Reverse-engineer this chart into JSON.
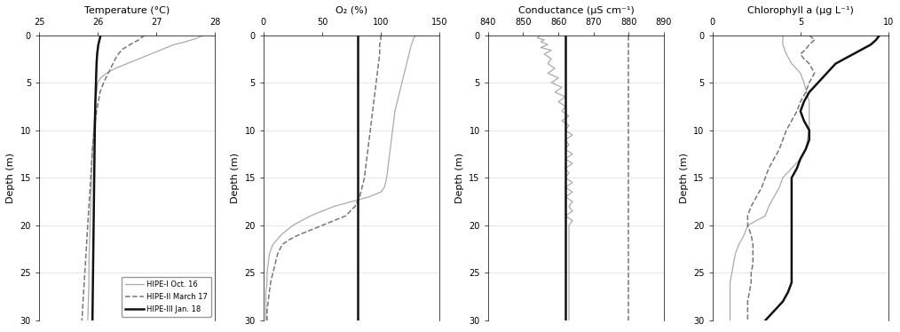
{
  "panels": [
    {
      "title": "Temperature (°C)",
      "xlim": [
        25,
        28
      ],
      "xticks": [
        25,
        26,
        27,
        28
      ],
      "ylim": [
        30,
        0
      ],
      "yticks": [
        0,
        5,
        10,
        15,
        20,
        25,
        30
      ],
      "ylabel": "Depth (m)"
    },
    {
      "title": "O₂ (%)",
      "xlim": [
        0,
        150
      ],
      "xticks": [
        0,
        50,
        100,
        150
      ],
      "ylim": [
        30,
        0
      ],
      "yticks": [
        0,
        5,
        10,
        15,
        20,
        25,
        30
      ],
      "ylabel": "Depth (m)"
    },
    {
      "title": "Conductance (µS cm⁻¹)",
      "xlim": [
        840,
        890
      ],
      "xticks": [
        840,
        850,
        860,
        870,
        880,
        890
      ],
      "ylim": [
        30,
        0
      ],
      "yticks": [
        0,
        5,
        10,
        15,
        20,
        25,
        30
      ],
      "ylabel": "Depth (m)"
    },
    {
      "title": "Chlorophyll a (µg L⁻¹)",
      "xlim": [
        0,
        10
      ],
      "xticks": [
        0,
        5,
        10
      ],
      "ylim": [
        30,
        0
      ],
      "yticks": [
        0,
        5,
        10,
        15,
        20,
        25,
        30
      ],
      "ylabel": "Depth (m)"
    }
  ],
  "series": {
    "HIPE-I Oct. 16": {
      "color": "#aaaaaa",
      "linestyle": "-",
      "linewidth": 0.9,
      "zorder": 1
    },
    "HIPE-II March 17": {
      "color": "#777777",
      "linestyle": "--",
      "linewidth": 1.1,
      "zorder": 2
    },
    "HIPE-III Jan. 18": {
      "color": "#111111",
      "linestyle": "-",
      "linewidth": 1.8,
      "zorder": 3
    }
  },
  "temp": {
    "HIPE-I": {
      "depth": [
        0,
        0.3,
        0.7,
        1.0,
        1.5,
        2.0,
        2.5,
        3.0,
        3.5,
        4.0,
        4.5,
        5.0,
        6,
        7,
        8,
        9,
        10,
        11,
        12,
        14,
        16,
        17,
        18,
        20,
        22,
        24,
        26,
        28,
        30
      ],
      "values": [
        27.8,
        27.7,
        27.5,
        27.3,
        27.1,
        26.9,
        26.7,
        26.5,
        26.3,
        26.15,
        26.05,
        26.0,
        25.98,
        25.96,
        25.95,
        25.94,
        25.93,
        25.92,
        25.91,
        25.9,
        25.89,
        25.88,
        25.88,
        25.87,
        25.86,
        25.85,
        25.85,
        25.84,
        25.83
      ]
    },
    "HIPE-II": {
      "depth": [
        0,
        0.5,
        1.0,
        1.5,
        2.0,
        2.5,
        3.0,
        3.5,
        4.0,
        4.5,
        5.0,
        5.5,
        6.0,
        7.0,
        8.0,
        9.0,
        10.0,
        12.0,
        14.0,
        16.0,
        18.0,
        20.0,
        22.0,
        24.0,
        26.0,
        28.0,
        30.0
      ],
      "values": [
        26.8,
        26.7,
        26.55,
        26.42,
        26.35,
        26.3,
        26.26,
        26.22,
        26.18,
        26.14,
        26.1,
        26.07,
        26.04,
        26.01,
        25.98,
        25.96,
        25.94,
        25.91,
        25.89,
        25.87,
        25.85,
        25.83,
        25.81,
        25.79,
        25.77,
        25.75,
        25.73
      ]
    },
    "HIPE-III": {
      "depth": [
        0,
        0.5,
        1.0,
        1.5,
        2.0,
        3.0,
        5.0,
        7.0,
        10.0,
        15.0,
        20.0,
        25.0,
        30.0
      ],
      "values": [
        26.05,
        26.03,
        26.01,
        26.0,
        25.99,
        25.98,
        25.97,
        25.96,
        25.95,
        25.94,
        25.93,
        25.92,
        25.91
      ]
    }
  },
  "o2": {
    "HIPE-I": {
      "depth": [
        0,
        0.3,
        0.7,
        1.0,
        1.5,
        2.0,
        2.5,
        3.0,
        3.5,
        4.0,
        5.0,
        6.0,
        7.0,
        8.0,
        10.0,
        12.0,
        14.0,
        15.0,
        16.0,
        16.5,
        17.0,
        17.5,
        18.0,
        19.0,
        20.0,
        21.0,
        22.0,
        23.0,
        24.0,
        25.0,
        26.0,
        27.0,
        28.0,
        29.0,
        30.0
      ],
      "values": [
        130,
        128,
        127,
        126,
        125,
        124,
        123,
        122,
        121,
        120,
        118,
        116,
        114,
        112,
        110,
        108,
        106,
        105,
        103,
        100,
        90,
        75,
        60,
        40,
        25,
        15,
        8,
        5,
        4,
        3,
        3,
        2,
        2,
        2,
        2
      ]
    },
    "HIPE-II": {
      "depth": [
        0,
        0.5,
        1.0,
        2.0,
        3.0,
        4.0,
        5.0,
        6.0,
        7.0,
        8.0,
        9.0,
        10.0,
        11.0,
        12.0,
        13.0,
        14.0,
        15.0,
        16.0,
        17.0,
        18.0,
        19.0,
        19.5,
        20.0,
        20.5,
        21.0,
        21.5,
        22.0,
        23.0,
        24.0,
        25.0,
        26.0,
        27.0,
        28.0,
        29.0,
        30.0
      ],
      "values": [
        100,
        100,
        99,
        99,
        98,
        97,
        96,
        95,
        94,
        93,
        92,
        91,
        90,
        89,
        88,
        87,
        86,
        84,
        82,
        78,
        70,
        60,
        50,
        40,
        30,
        22,
        16,
        12,
        10,
        8,
        6,
        5,
        4,
        3,
        3
      ]
    },
    "HIPE-III": {
      "depth": [
        0,
        1,
        2,
        3,
        5,
        8,
        10,
        15,
        17,
        18,
        20,
        22,
        25,
        28,
        30
      ],
      "values": [
        80,
        80,
        80,
        80,
        80,
        80,
        80,
        80,
        80,
        80,
        80,
        80,
        80,
        80,
        80
      ]
    }
  },
  "conductance": {
    "HIPE-I": {
      "depth": [
        0,
        0.3,
        0.5,
        0.7,
        1.0,
        1.3,
        1.6,
        2.0,
        2.5,
        3.0,
        3.5,
        4.0,
        4.5,
        5.0,
        5.5,
        6.0,
        6.5,
        7.0,
        7.5,
        8.0,
        8.5,
        9.0,
        9.5,
        10.0,
        10.5,
        11.0,
        11.5,
        12.0,
        12.5,
        13.0,
        13.5,
        14.0,
        14.5,
        15.0,
        15.5,
        16.0,
        16.5,
        17.0,
        17.5,
        18.0,
        18.5,
        19.0,
        19.5,
        20.0,
        21.0,
        22.0,
        23.0,
        24.0,
        25.0,
        26.0,
        27.0,
        28.0,
        29.0,
        30.0
      ],
      "values": [
        855,
        854,
        856,
        855,
        857,
        855,
        858,
        856,
        858,
        857,
        859,
        857,
        860,
        858,
        861,
        859,
        862,
        860,
        862,
        861,
        863,
        861,
        863,
        862,
        864,
        862,
        863,
        862,
        864,
        862,
        864,
        862,
        863,
        862,
        864,
        862,
        864,
        862,
        864,
        863,
        864,
        862,
        864,
        863,
        863,
        863,
        863,
        863,
        863,
        863,
        863,
        863,
        863,
        863
      ]
    },
    "HIPE-II": {
      "depth": [
        0,
        0.5,
        1,
        2,
        5,
        10,
        15,
        20,
        25,
        30
      ],
      "values": [
        880,
        880,
        880,
        880,
        880,
        880,
        880,
        880,
        880,
        880
      ]
    },
    "HIPE-III": {
      "depth": [
        0,
        0.5,
        1,
        2,
        5,
        10,
        15,
        20,
        25,
        30
      ],
      "values": [
        862,
        862,
        862,
        862,
        862,
        862,
        862,
        862,
        862,
        862
      ]
    }
  },
  "chlorophyll": {
    "HIPE-I": {
      "depth": [
        0,
        1,
        2,
        3,
        4,
        5,
        7,
        10,
        12,
        13,
        14,
        15,
        16,
        17,
        18,
        19,
        20,
        21,
        22,
        23,
        24,
        25,
        26,
        27,
        28,
        29,
        30
      ],
      "values": [
        4.0,
        4.0,
        4.2,
        4.5,
        5.0,
        5.2,
        5.5,
        5.5,
        5.3,
        5.0,
        4.5,
        4.0,
        3.8,
        3.5,
        3.2,
        3.0,
        2.0,
        1.8,
        1.5,
        1.3,
        1.2,
        1.1,
        1.0,
        1.0,
        1.0,
        1.0,
        1.0
      ]
    },
    "HIPE-II": {
      "depth": [
        0,
        0.5,
        1,
        1.5,
        2,
        2.5,
        3,
        4,
        5,
        6,
        7,
        8,
        9,
        10,
        11,
        12,
        13,
        14,
        15,
        16,
        17,
        18,
        19,
        20,
        21,
        22,
        23,
        24,
        25,
        26,
        27,
        28,
        29,
        30
      ],
      "values": [
        5.5,
        5.8,
        5.5,
        5.3,
        5.0,
        5.2,
        5.5,
        5.8,
        5.5,
        5.3,
        5.0,
        4.8,
        4.5,
        4.2,
        4.0,
        3.8,
        3.5,
        3.2,
        3.0,
        2.8,
        2.5,
        2.2,
        2.0,
        2.0,
        2.2,
        2.3,
        2.3,
        2.3,
        2.2,
        2.2,
        2.1,
        2.0,
        2.0,
        2.0
      ]
    },
    "HIPE-III": {
      "depth": [
        0,
        0.5,
        1,
        1.5,
        2,
        3,
        4,
        5,
        6,
        7,
        8,
        9,
        10,
        11,
        12,
        13,
        14,
        15,
        16,
        17,
        18,
        19,
        20,
        21,
        22,
        23,
        24,
        25,
        26,
        27,
        28,
        29,
        30
      ],
      "values": [
        9.5,
        9.3,
        9.0,
        8.5,
        8.0,
        7.0,
        6.5,
        6.0,
        5.5,
        5.2,
        5.0,
        5.2,
        5.5,
        5.5,
        5.3,
        5.0,
        4.8,
        4.5,
        4.5,
        4.5,
        4.5,
        4.5,
        4.5,
        4.5,
        4.5,
        4.5,
        4.5,
        4.5,
        4.5,
        4.3,
        4.0,
        3.5,
        3.0
      ]
    }
  },
  "legend_labels": [
    "HIPE-I Oct. 16",
    "HIPE-II March 17",
    "HIPE-III Jan. 18"
  ],
  "bg_color": "#ffffff",
  "grid_color": "#dddddd"
}
